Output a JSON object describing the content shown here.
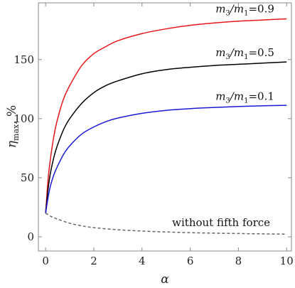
{
  "chart_data": {
    "type": "line",
    "xlabel": "α",
    "ylabel": "η_max, %",
    "xlim": [
      -0.3,
      10.2
    ],
    "ylim": [
      -12,
      198
    ],
    "xticks": [
      0,
      2,
      4,
      6,
      8,
      10
    ],
    "yticks": [
      0,
      50,
      100,
      150
    ],
    "grid": false,
    "series": [
      {
        "name": "m3/m1=0.9",
        "color": "#e8161b",
        "dash": false,
        "x": [
          0,
          0.1,
          0.2,
          0.35,
          0.5,
          0.75,
          1,
          1.5,
          2,
          2.5,
          3,
          4,
          5,
          6,
          7,
          8,
          9,
          10
        ],
        "y": [
          20,
          48,
          66,
          86,
          100,
          117,
          128,
          145,
          155,
          161,
          166,
          172,
          176,
          179,
          181,
          182.5,
          183.5,
          184.5
        ]
      },
      {
        "name": "m3/m1=0.5",
        "color": "#000000",
        "dash": false,
        "x": [
          0,
          0.1,
          0.2,
          0.35,
          0.5,
          0.75,
          1,
          1.5,
          2,
          2.5,
          3,
          4,
          5,
          6,
          7,
          8,
          9,
          10
        ],
        "y": [
          20,
          40,
          54,
          68,
          78,
          91,
          100,
          113,
          122,
          128,
          132,
          138,
          141.5,
          143.5,
          145,
          146,
          147,
          148
        ]
      },
      {
        "name": "m3/m1=0.1",
        "color": "#1a1ad6",
        "dash": false,
        "x": [
          0,
          0.1,
          0.2,
          0.35,
          0.5,
          0.75,
          1,
          1.5,
          2,
          2.5,
          3,
          4,
          5,
          6,
          7,
          8,
          9,
          10
        ],
        "y": [
          20,
          33,
          43,
          53,
          60,
          70,
          77,
          87,
          93,
          97.5,
          100.5,
          104.5,
          107,
          108.5,
          109.5,
          110.3,
          110.9,
          111.3
        ]
      },
      {
        "name": "without fifth force",
        "color": "#666666",
        "dash": true,
        "x": [
          0,
          0.25,
          0.5,
          1,
          1.5,
          2,
          3,
          4,
          5,
          6,
          7,
          8,
          9,
          10
        ],
        "y": [
          20,
          17,
          15,
          11.5,
          9.3,
          7.8,
          6,
          4.9,
          4.1,
          3.5,
          3.1,
          2.8,
          2.5,
          2.3
        ]
      }
    ],
    "annotations": [
      {
        "series": "m3/m1=0.9",
        "text_parts": [
          "m",
          "3",
          "/m",
          "1",
          "=0.9"
        ],
        "x": 7.05,
        "y": 190
      },
      {
        "series": "m3/m1=0.5",
        "text_parts": [
          "m",
          "3",
          "/m",
          "1",
          "=0.5"
        ],
        "x": 7.05,
        "y": 153
      },
      {
        "series": "m3/m1=0.1",
        "text_parts": [
          "m",
          "3",
          "/m",
          "1",
          "=0.1"
        ],
        "x": 7.05,
        "y": 116
      },
      {
        "series": "without fifth force",
        "text": "without fifth force",
        "x": 5.25,
        "y": 9
      }
    ]
  }
}
